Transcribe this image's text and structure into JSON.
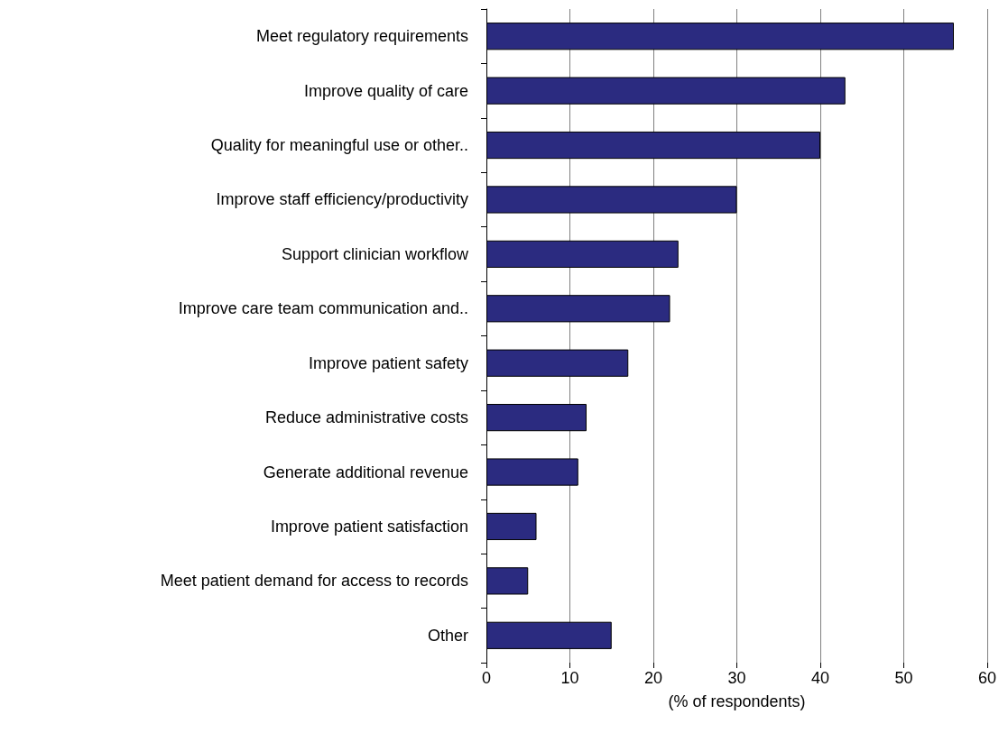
{
  "chart_data": {
    "type": "bar",
    "orientation": "horizontal",
    "categories": [
      "Meet regulatory requirements",
      "Improve quality of care",
      "Quality for meaningful use or other..",
      "Improve staff efficiency/productivity",
      "Support clinician workflow",
      "Improve care team communication and..",
      "Improve patient safety",
      "Reduce administrative costs",
      "Generate additional revenue",
      "Improve patient satisfaction",
      "Meet patient demand for access to records",
      "Other"
    ],
    "values": [
      56,
      43,
      40,
      30,
      23,
      22,
      17,
      12,
      11,
      6,
      5,
      15
    ],
    "color": "#2b2b80",
    "xlabel": "(% of respondents)",
    "xlim": [
      0,
      60
    ],
    "xticks": [
      0,
      10,
      20,
      30,
      40,
      50,
      60
    ],
    "grid": "x"
  }
}
